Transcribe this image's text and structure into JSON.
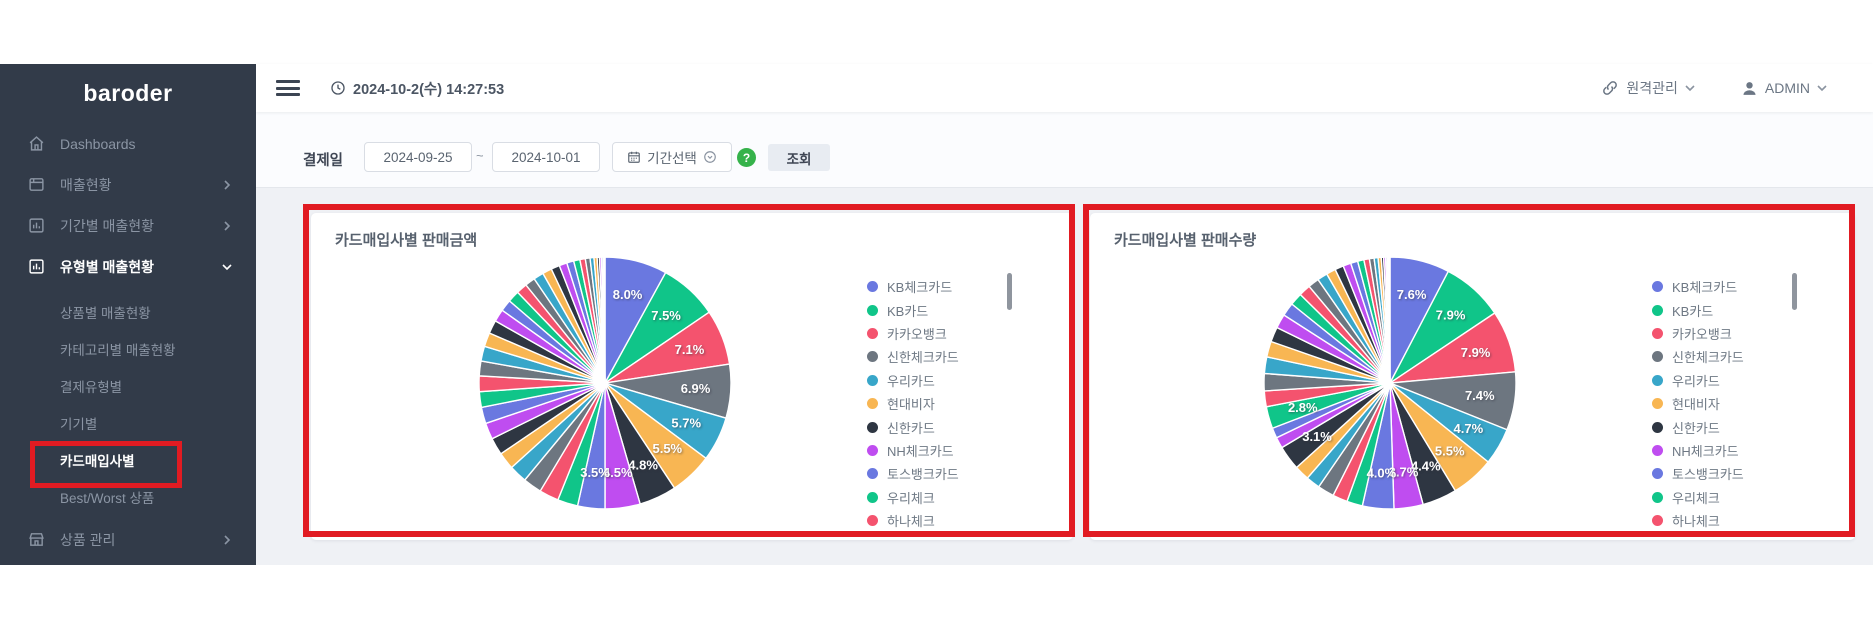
{
  "topbar": {
    "datetime": "2024-10-2(수) 14:27:53",
    "remote_label": "원격관리",
    "admin_label": "ADMIN"
  },
  "sidebar": {
    "logo": "baroder",
    "items": [
      {
        "label": "Dashboards"
      },
      {
        "label": "매출현황"
      },
      {
        "label": "기간별 매출현황"
      },
      {
        "label": "유형별 매출현황"
      },
      {
        "label": "상품 관리"
      }
    ],
    "subitems": [
      "상품별 매출현황",
      "카테고리별 매출현황",
      "결제유형별",
      "기기별",
      "카드매입사별",
      "Best/Worst 상품"
    ]
  },
  "filter": {
    "label": "결제일",
    "date_from": "2024-09-25",
    "tilde": "~",
    "date_to": "2024-10-01",
    "period_button": "기간선택",
    "help": "?",
    "search_button": "조회"
  },
  "ui_colors": {
    "sidebar_bg": "#323b49",
    "highlight_red": "#e11b22",
    "help_green": "#35b24a"
  },
  "palette": [
    "#6a78e0",
    "#10c589",
    "#f4536e",
    "#6d7680",
    "#38a6c9",
    "#f8b653",
    "#2e3642",
    "#bf4df0"
  ],
  "legend_items": [
    "KB체크카드",
    "KB카드",
    "카카오뱅크",
    "신한체크카드",
    "우리카드",
    "현대비자",
    "신한카드",
    "NH체크카드",
    "토스뱅크카드",
    "우리체크",
    "하나체크"
  ],
  "chart_data": [
    {
      "type": "pie",
      "title": "카드매입사별 판매금액",
      "legend_position": "right",
      "slices": [
        {
          "name": "KB체크카드",
          "value": 8.0,
          "label": "8.0%"
        },
        {
          "name": "KB카드",
          "value": 7.5,
          "label": "7.5%"
        },
        {
          "name": "카카오뱅크",
          "value": 7.1,
          "label": "7.1%"
        },
        {
          "name": "신한체크카드",
          "value": 6.9,
          "label": "6.9%"
        },
        {
          "name": "우리카드",
          "value": 5.7,
          "label": "5.7%"
        },
        {
          "name": "현대비자",
          "value": 5.5,
          "label": "5.5%"
        },
        {
          "name": "신한카드",
          "value": 4.8,
          "label": "4.8%"
        },
        {
          "name": "NH체크카드",
          "value": 4.5,
          "label": "4.5%"
        },
        {
          "name": "토스뱅크카드",
          "value": 3.5,
          "label": "3.5%"
        },
        {
          "name": "우리체크",
          "value": 2.6,
          "label": ""
        },
        {
          "name": "하나체크",
          "value": 2.5,
          "label": ""
        },
        {
          "value": 2.4
        },
        {
          "value": 2.3
        },
        {
          "value": 2.2
        },
        {
          "value": 2.2
        },
        {
          "value": 2.1
        },
        {
          "value": 2.1
        },
        {
          "value": 2.0
        },
        {
          "value": 2.0
        },
        {
          "value": 1.9
        },
        {
          "value": 1.9
        },
        {
          "value": 1.8
        },
        {
          "value": 1.7
        },
        {
          "value": 1.6
        },
        {
          "value": 1.5
        },
        {
          "value": 1.5
        },
        {
          "value": 1.4
        },
        {
          "value": 1.3
        },
        {
          "value": 1.3
        },
        {
          "value": 1.2
        },
        {
          "value": 1.1
        },
        {
          "value": 1.0
        },
        {
          "value": 0.9
        },
        {
          "value": 0.8
        },
        {
          "value": 0.7
        },
        {
          "value": 0.6
        },
        {
          "value": 0.5
        },
        {
          "value": 0.4
        },
        {
          "value": 0.3
        },
        {
          "value": 0.25
        },
        {
          "value": 0.2
        },
        {
          "value": 0.15
        },
        {
          "value": 0.1
        }
      ]
    },
    {
      "type": "pie",
      "title": "카드매입사별 판매수량",
      "legend_position": "right",
      "slices": [
        {
          "name": "KB체크카드",
          "value": 7.6,
          "label": "7.6%"
        },
        {
          "name": "KB카드",
          "value": 7.9,
          "label": "7.9%"
        },
        {
          "name": "카카오뱅크",
          "value": 7.9,
          "label": "7.9%"
        },
        {
          "name": "신한체크카드",
          "value": 7.4,
          "label": "7.4%"
        },
        {
          "name": "우리카드",
          "value": 4.7,
          "label": "4.7%"
        },
        {
          "name": "현대비자",
          "value": 5.5,
          "label": "5.5%"
        },
        {
          "name": "신한카드",
          "value": 4.4,
          "label": "4.4%"
        },
        {
          "name": "NH체크카드",
          "value": 3.7,
          "label": "3.7%"
        },
        {
          "name": "토스뱅크카드",
          "value": 4.0,
          "label": "4.0%"
        },
        {
          "name": "우리체크",
          "value": 2.0,
          "label": ""
        },
        {
          "name": "하나체크",
          "value": 1.9,
          "label": ""
        },
        {
          "value": 2.1
        },
        {
          "value": 1.8
        },
        {
          "value": 1.9
        },
        {
          "value": 3.1,
          "label": "3.1%"
        },
        {
          "value": 1.4
        },
        {
          "value": 1.3
        },
        {
          "value": 2.8,
          "label": "2.8%"
        },
        {
          "value": 2.0
        },
        {
          "value": 2.2
        },
        {
          "value": 2.1
        },
        {
          "value": 2.0
        },
        {
          "value": 1.9
        },
        {
          "value": 1.8
        },
        {
          "value": 1.7
        },
        {
          "value": 1.6
        },
        {
          "value": 1.5
        },
        {
          "value": 1.4
        },
        {
          "value": 1.3
        },
        {
          "value": 1.2
        },
        {
          "value": 1.1
        },
        {
          "value": 1.0
        },
        {
          "value": 0.9
        },
        {
          "value": 0.8
        },
        {
          "value": 0.7
        },
        {
          "value": 0.6
        },
        {
          "value": 0.5
        },
        {
          "value": 0.4
        },
        {
          "value": 0.3
        },
        {
          "value": 0.25
        },
        {
          "value": 0.2
        },
        {
          "value": 0.15
        },
        {
          "value": 0.12
        },
        {
          "value": 0.08
        }
      ]
    }
  ]
}
